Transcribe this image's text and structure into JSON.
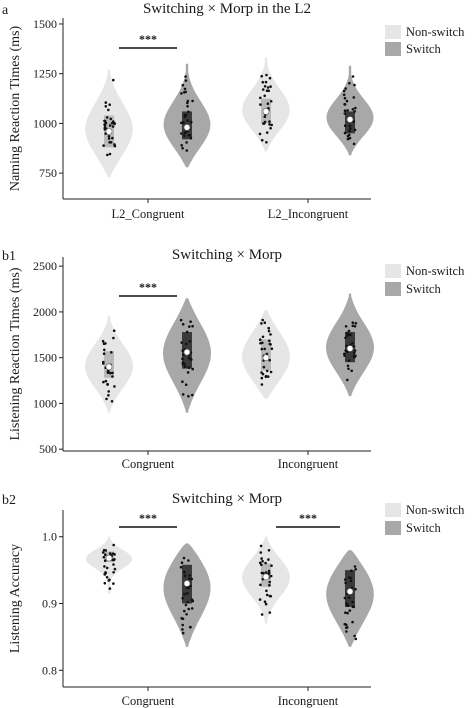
{
  "colors": {
    "non_switch_fill": "#e6e6e6",
    "switch_fill": "#a8a8a8",
    "box_light": "#b9b9b9",
    "box_dark": "#3a3a3a",
    "median_point": "#ffffff",
    "data_point": "#111111"
  },
  "chart_data": [
    {
      "type": "violin",
      "panel_label": "a",
      "title": "Switching × Morp in the L2",
      "ylabel": "Naming Reaction Times (ms)",
      "ylim": [
        620,
        1530
      ],
      "yticks": [
        750,
        1000,
        1250,
        1500
      ],
      "categories": [
        "L2_Congruent",
        "L2_Incongruent"
      ],
      "legend": [
        "Non-switch",
        "Switch"
      ],
      "significance": [
        {
          "category": "L2_Congruent",
          "label": "***"
        }
      ],
      "series": [
        {
          "name": "Non-switch",
          "groups": [
            {
              "min": 730,
              "max": 1270,
              "q1": 880,
              "median": 960,
              "q3": 1040,
              "mean": 960
            },
            {
              "min": 860,
              "max": 1330,
              "q1": 1000,
              "median": 1060,
              "q3": 1125,
              "mean": 1060
            }
          ]
        },
        {
          "name": "Switch",
          "groups": [
            {
              "min": 780,
              "max": 1300,
              "q1": 920,
              "median": 980,
              "q3": 1060,
              "mean": 985
            },
            {
              "min": 840,
              "max": 1290,
              "q1": 950,
              "median": 1020,
              "q3": 1060,
              "mean": 1025
            }
          ]
        }
      ]
    },
    {
      "type": "violin",
      "panel_label": "b1",
      "title": "Switching × Morp",
      "ylabel": "Listening Reaction Times (ms)",
      "ylim": [
        480,
        2600
      ],
      "yticks": [
        500,
        1000,
        1500,
        2000,
        2500
      ],
      "categories": [
        "Congruent",
        "Incongruent"
      ],
      "legend": [
        "Non-switch",
        "Switch"
      ],
      "significance": [
        {
          "category": "Congruent",
          "label": "***"
        }
      ],
      "series": [
        {
          "name": "Non-switch",
          "groups": [
            {
              "min": 900,
              "max": 1960,
              "q1": 1280,
              "median": 1400,
              "q3": 1570,
              "mean": 1400
            },
            {
              "min": 1050,
              "max": 2020,
              "q1": 1360,
              "median": 1500,
              "q3": 1700,
              "mean": 1510
            }
          ]
        },
        {
          "name": "Switch",
          "groups": [
            {
              "min": 900,
              "max": 2150,
              "q1": 1380,
              "median": 1560,
              "q3": 1780,
              "mean": 1560
            },
            {
              "min": 1080,
              "max": 2200,
              "q1": 1450,
              "median": 1600,
              "q3": 1780,
              "mean": 1610
            }
          ]
        }
      ]
    },
    {
      "type": "violin",
      "panel_label": "b2",
      "title": "Switching × Morp",
      "ylabel": "Listening Accuracy",
      "ylim": [
        0.775,
        1.04
      ],
      "yticks": [
        0.8,
        0.9,
        1.0
      ],
      "categories": [
        "Congruent",
        "Incongruent"
      ],
      "legend": [
        "Non-switch",
        "Switch"
      ],
      "significance": [
        {
          "category": "Congruent",
          "label": "***"
        },
        {
          "category": "Incongruent",
          "label": "***"
        }
      ],
      "series": [
        {
          "name": "Non-switch",
          "groups": [
            {
              "min": 0.915,
              "max": 1.0,
              "q1": 0.962,
              "median": 0.968,
              "q3": 0.978,
              "mean": 0.968
            },
            {
              "min": 0.87,
              "max": 1.0,
              "q1": 0.925,
              "median": 0.94,
              "q3": 0.96,
              "mean": 0.94
            }
          ]
        },
        {
          "name": "Switch",
          "groups": [
            {
              "min": 0.835,
              "max": 0.99,
              "q1": 0.9,
              "median": 0.93,
              "q3": 0.958,
              "mean": 0.93
            },
            {
              "min": 0.835,
              "max": 0.98,
              "q1": 0.895,
              "median": 0.918,
              "q3": 0.95,
              "mean": 0.918
            }
          ]
        }
      ]
    }
  ]
}
